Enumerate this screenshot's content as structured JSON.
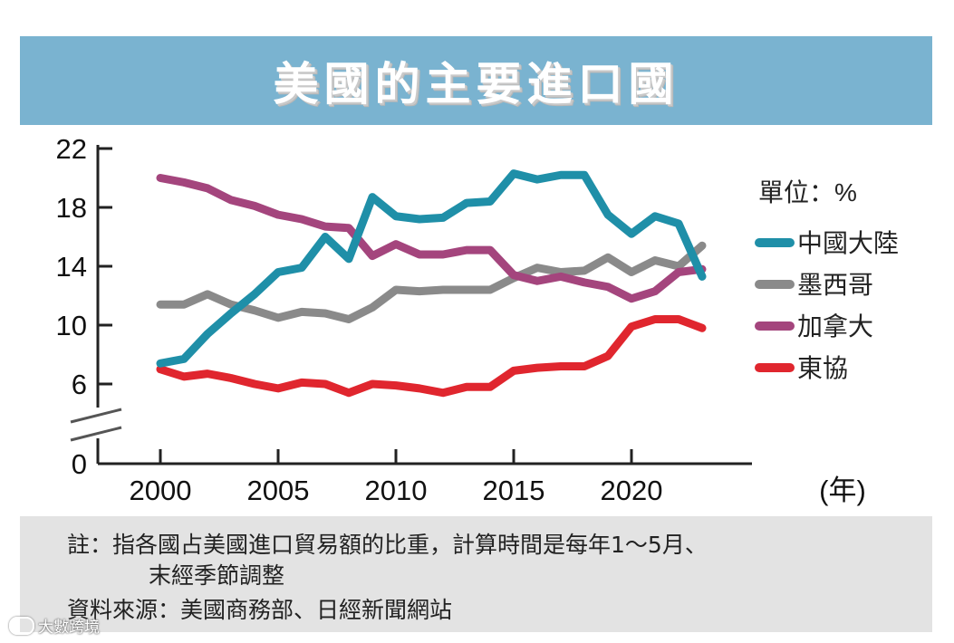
{
  "title": "美國的主要進口國",
  "chart_data": {
    "type": "line",
    "title": "美國的主要進口國",
    "unit_label": "單位：%",
    "xlabel": "(年)",
    "ylabel": "",
    "ylim": [
      0,
      22
    ],
    "axis_break": "between 0 and 6",
    "y_ticks": [
      22,
      18,
      14,
      10,
      6,
      0
    ],
    "x_ticks": [
      2000,
      2005,
      2010,
      2015,
      2020
    ],
    "x": [
      2000,
      2001,
      2002,
      2003,
      2004,
      2005,
      2006,
      2007,
      2008,
      2009,
      2010,
      2011,
      2012,
      2013,
      2014,
      2015,
      2016,
      2017,
      2018,
      2019,
      2020,
      2021,
      2022,
      2023
    ],
    "series": [
      {
        "name": "中國大陸",
        "color": "#1f8fa8",
        "values": [
          7.4,
          7.7,
          9.4,
          10.8,
          12.1,
          13.6,
          13.9,
          16.0,
          14.5,
          18.7,
          17.4,
          17.2,
          17.3,
          18.3,
          18.4,
          20.3,
          19.9,
          20.2,
          20.2,
          17.5,
          16.2,
          17.4,
          16.9,
          13.3
        ]
      },
      {
        "name": "墨西哥",
        "color": "#8a8a8a",
        "values": [
          11.4,
          11.4,
          12.1,
          11.4,
          11.0,
          10.5,
          10.9,
          10.8,
          10.4,
          11.2,
          12.4,
          12.3,
          12.4,
          12.4,
          12.4,
          13.2,
          13.9,
          13.6,
          13.7,
          14.6,
          13.6,
          14.4,
          14.0,
          15.4
        ]
      },
      {
        "name": "加拿大",
        "color": "#a4457d",
        "values": [
          20.0,
          19.7,
          19.3,
          18.5,
          18.1,
          17.5,
          17.2,
          16.7,
          16.6,
          14.7,
          15.5,
          14.8,
          14.8,
          15.1,
          15.1,
          13.4,
          13.0,
          13.3,
          12.9,
          12.6,
          11.8,
          12.3,
          13.6,
          13.8
        ]
      },
      {
        "name": "東協",
        "color": "#e0262e",
        "values": [
          7.0,
          6.5,
          6.7,
          6.4,
          6.0,
          5.7,
          6.1,
          6.0,
          5.4,
          6.0,
          5.9,
          5.7,
          5.4,
          5.8,
          5.8,
          6.9,
          7.1,
          7.2,
          7.2,
          7.9,
          9.9,
          10.4,
          10.4,
          9.8
        ]
      }
    ]
  },
  "notes": {
    "line1": "註：指各國占美國進口貿易額的比重，計算時間是每年1～5月、",
    "line2": "末經季節調整",
    "source": "資料來源：美國商務部、日經新聞網站"
  },
  "watermark": "大數跨境"
}
